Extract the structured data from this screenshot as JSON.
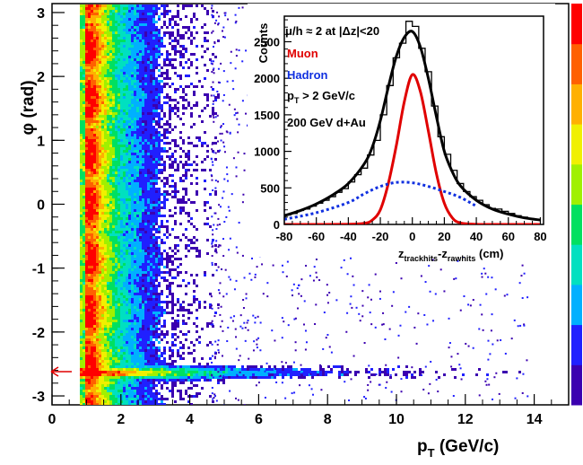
{
  "chart_data": [
    {
      "type": "heatmap",
      "xlabel": "p",
      "xlabel_sub": "T",
      "xlabel_unit": " (GeV/c)",
      "ylabel": "φ (rad)",
      "xlim": [
        0,
        15
      ],
      "ylim": [
        -3.14,
        3.14
      ],
      "xticks": [
        "0",
        "2",
        "4",
        "6",
        "8",
        "10",
        "12",
        "14"
      ],
      "xtick_values": [
        0,
        2,
        4,
        6,
        8,
        10,
        12,
        14
      ],
      "yticks": [
        "3",
        "2",
        "1",
        "0",
        "-1",
        "-2",
        "-3"
      ],
      "ytick_values": [
        3,
        2,
        1,
        0,
        -1,
        -2,
        -3
      ],
      "arrow_at_phi": -2.62,
      "arrow_color": "#e00000",
      "hot_band_phi": -2.62,
      "ridge_pt_min": 0.85,
      "ridge_pt_max": 5.0,
      "colorscale": [
        "#3b00b0",
        "#2020ff",
        "#00b0ff",
        "#00e0c0",
        "#00e060",
        "#a0f000",
        "#f0f000",
        "#ffb000",
        "#ff6000",
        "#ff0000"
      ]
    },
    {
      "type": "line",
      "title": "μ/h ≈ 2 at |Δz|<20",
      "xlabel": "z",
      "xlabel_sub1": "trackhits",
      "xlabel_mid": "-z",
      "xlabel_sub2": "rawhits",
      "xlabel_unit": " (cm)",
      "ylabel": "Counts",
      "xlim": [
        -80,
        82
      ],
      "ylim": [
        0,
        2850
      ],
      "xticks": [
        "-80",
        "-60",
        "-40",
        "-20",
        "0",
        "20",
        "40",
        "60",
        "80"
      ],
      "xtick_values": [
        -80,
        -60,
        -40,
        -20,
        0,
        20,
        40,
        60,
        80
      ],
      "yticks": [
        "0",
        "500",
        "1000",
        "1500",
        "2000",
        "2500"
      ],
      "ytick_values": [
        0,
        500,
        1000,
        1500,
        2000,
        2500
      ],
      "annotations": [
        "Muon",
        "Hadron",
        "p",
        "T",
        " > 2 GeV/c",
        "200 GeV d+Au"
      ],
      "series": [
        {
          "name": "Muon",
          "color": "#e00000",
          "style": "solid",
          "x": [
            -80,
            -60,
            -40,
            -30,
            -25,
            -20,
            -15,
            -10,
            -5,
            0,
            5,
            10,
            15,
            20,
            25,
            30,
            40,
            60,
            80
          ],
          "values": [
            0,
            0,
            2,
            15,
            60,
            200,
            560,
            1080,
            1680,
            2050,
            1820,
            1280,
            700,
            290,
            90,
            20,
            2,
            0,
            0
          ]
        },
        {
          "name": "Hadron",
          "color": "#1030e0",
          "style": "dashed",
          "x": [
            -80,
            -60,
            -40,
            -30,
            -20,
            -10,
            0,
            10,
            20,
            30,
            40
          ],
          "values": [
            70,
            160,
            300,
            420,
            520,
            575,
            570,
            520,
            450,
            370,
            250
          ]
        },
        {
          "color": "#000000",
          "style": "solid",
          "x": [
            -80,
            -70,
            -60,
            -50,
            -40,
            -30,
            -25,
            -20,
            -15,
            -10,
            -5,
            0,
            5,
            10,
            15,
            20,
            25,
            30,
            40,
            50,
            60,
            70,
            80
          ],
          "values": [
            120,
            190,
            280,
            400,
            560,
            830,
            1060,
            1420,
            1880,
            2300,
            2560,
            2640,
            2430,
            2000,
            1480,
            1000,
            720,
            530,
            330,
            210,
            140,
            90,
            60
          ]
        },
        {
          "color": "#000000",
          "style": "histogram",
          "x": [
            -80,
            -76,
            -72,
            -68,
            -64,
            -60,
            -56,
            -52,
            -48,
            -44,
            -40,
            -36,
            -32,
            -28,
            -24,
            -20,
            -16,
            -12,
            -8,
            -4,
            0,
            4,
            8,
            12,
            16,
            20,
            24,
            28,
            32,
            36,
            40,
            44,
            48,
            52,
            56,
            60,
            64,
            68,
            72,
            76
          ],
          "values": [
            130,
            150,
            190,
            210,
            250,
            290,
            330,
            380,
            440,
            490,
            580,
            680,
            770,
            950,
            1150,
            1500,
            1900,
            2280,
            2480,
            2780,
            2710,
            2410,
            2090,
            1620,
            1200,
            960,
            740,
            560,
            450,
            380,
            330,
            270,
            220,
            210,
            180,
            150,
            120,
            100,
            80,
            70
          ]
        }
      ]
    }
  ]
}
